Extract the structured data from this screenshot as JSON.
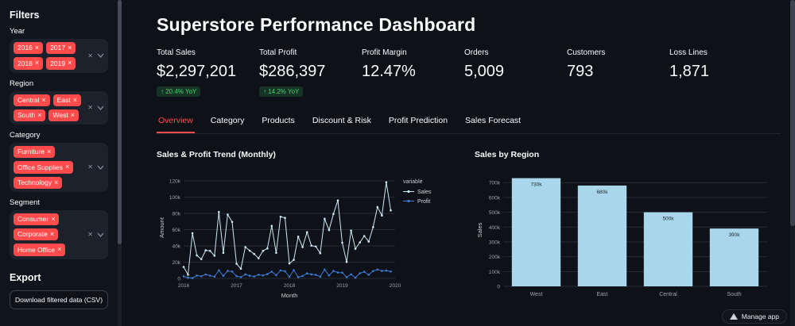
{
  "colors": {
    "accent": "#ff4b4b",
    "positive": "#3dd56d",
    "sales_line": "#cde9f6",
    "profit_line": "#3a7bd5",
    "bar_fill": "#a9d6ea"
  },
  "icons": {
    "remove_tag": "×",
    "clear_all": "✕",
    "arrow_up": "↑"
  },
  "sidebar": {
    "title": "Filters",
    "filters": [
      {
        "label": "Year",
        "values": [
          "2016",
          "2017",
          "2018",
          "2019"
        ]
      },
      {
        "label": "Region",
        "values": [
          "Central",
          "East",
          "South",
          "West"
        ]
      },
      {
        "label": "Category",
        "values": [
          "Furniture",
          "Office Supplies",
          "Technology"
        ]
      },
      {
        "label": "Segment",
        "values": [
          "Consumer",
          "Corporate",
          "Home Office"
        ]
      }
    ],
    "export_title": "Export",
    "download_label": "Download filtered data (CSV)"
  },
  "header": {
    "title": "Superstore Performance Dashboard"
  },
  "metrics": [
    {
      "label": "Total Sales",
      "value": "$2,297,201",
      "delta": "↑ 20.4% YoY"
    },
    {
      "label": "Total Profit",
      "value": "$286,397",
      "delta": "↑ 14.2% YoY"
    },
    {
      "label": "Profit Margin",
      "value": "12.47%"
    },
    {
      "label": "Orders",
      "value": "5,009"
    },
    {
      "label": "Customers",
      "value": "793"
    },
    {
      "label": "Loss Lines",
      "value": "1,871"
    }
  ],
  "tabs": [
    {
      "label": "Overview",
      "active": true
    },
    {
      "label": "Category",
      "active": false
    },
    {
      "label": "Products",
      "active": false
    },
    {
      "label": "Discount & Risk",
      "active": false
    },
    {
      "label": "Profit Prediction",
      "active": false
    },
    {
      "label": "Sales Forecast",
      "active": false
    }
  ],
  "footer": {
    "manage_app": "Manage app"
  },
  "chart_data": [
    {
      "type": "line",
      "title": "Sales & Profit Trend (Monthly)",
      "xlabel": "Month",
      "ylabel": "Amount",
      "legend_title": "variable",
      "ylim": [
        0,
        125000
      ],
      "x_tick_positions": [
        0,
        12,
        24,
        36,
        48
      ],
      "x_tick_labels": [
        "2016",
        "2017",
        "2018",
        "2019",
        "2020"
      ],
      "y_tick_values": [
        0,
        20000,
        40000,
        60000,
        80000,
        100000,
        120000
      ],
      "y_tick_labels": [
        "0",
        "20k",
        "40k",
        "60k",
        "80k",
        "100k",
        "120k"
      ],
      "x": [
        "2016-01",
        "2016-02",
        "2016-03",
        "2016-04",
        "2016-05",
        "2016-06",
        "2016-07",
        "2016-08",
        "2016-09",
        "2016-10",
        "2016-11",
        "2016-12",
        "2017-01",
        "2017-02",
        "2017-03",
        "2017-04",
        "2017-05",
        "2017-06",
        "2017-07",
        "2017-08",
        "2017-09",
        "2017-10",
        "2017-11",
        "2017-12",
        "2018-01",
        "2018-02",
        "2018-03",
        "2018-04",
        "2018-05",
        "2018-06",
        "2018-07",
        "2018-08",
        "2018-09",
        "2018-10",
        "2018-11",
        "2018-12",
        "2019-01",
        "2019-02",
        "2019-03",
        "2019-04",
        "2019-05",
        "2019-06",
        "2019-07",
        "2019-08",
        "2019-09",
        "2019-10",
        "2019-11",
        "2019-12"
      ],
      "series": [
        {
          "name": "Sales",
          "color": "#cde9f6",
          "values": [
            14200,
            4500,
            55700,
            28300,
            23600,
            34600,
            33900,
            27900,
            81800,
            31400,
            78600,
            69500,
            18100,
            11900,
            38700,
            34200,
            30100,
            24800,
            33900,
            36900,
            64600,
            31400,
            75900,
            74500,
            18500,
            22900,
            51400,
            38600,
            56900,
            40300,
            39300,
            31100,
            73400,
            59500,
            79400,
            96000,
            43900,
            20300,
            58900,
            36500,
            44300,
            52200,
            45300,
            63100,
            87900,
            77400,
            118400,
            83800
          ]
        },
        {
          "name": "Profit",
          "color": "#3a7bd5",
          "values": [
            2500,
            900,
            500,
            3500,
            2600,
            4900,
            3400,
            2100,
            9900,
            3200,
            9300,
            8500,
            2800,
            1600,
            5000,
            3200,
            2300,
            4500,
            3700,
            5300,
            8300,
            3900,
            9900,
            8800,
            2000,
            10300,
            1600,
            3000,
            6200,
            5000,
            4400,
            2100,
            10800,
            3600,
            9200,
            7200,
            7100,
            1600,
            5000,
            900,
            6300,
            8200,
            4400,
            9000,
            10900,
            9300,
            9700,
            8500
          ]
        }
      ]
    },
    {
      "type": "bar",
      "title": "Sales by Region",
      "xlabel": "",
      "ylabel": "Sales",
      "categories": [
        "West",
        "East",
        "Central",
        "South"
      ],
      "values": [
        730000,
        680000,
        500000,
        390000
      ],
      "bar_labels": [
        "730k",
        "680k",
        "500k",
        "390k"
      ],
      "ylim": [
        0,
        760000
      ],
      "y_tick_values": [
        0,
        100000,
        200000,
        300000,
        400000,
        500000,
        600000,
        700000
      ],
      "y_tick_labels": [
        "0",
        "100k",
        "200k",
        "300k",
        "400k",
        "500k",
        "600k",
        "700k"
      ],
      "color": "#a9d6ea"
    }
  ]
}
